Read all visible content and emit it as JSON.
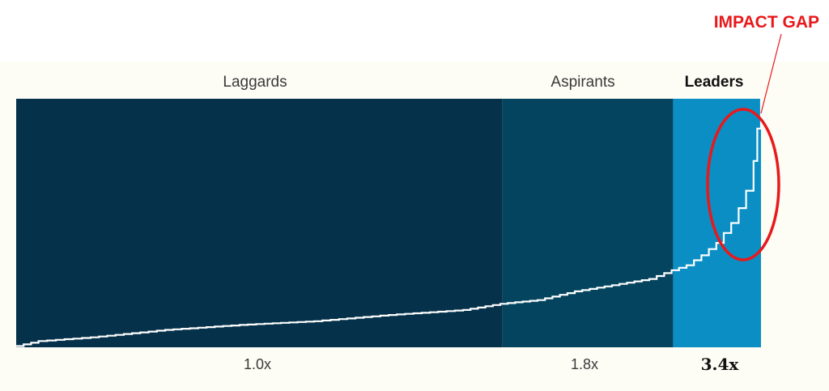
{
  "colors": {
    "background": "#fdfcf5",
    "laggards": "#05314a",
    "aspirants": "#05445f",
    "leaders": "#0a8ec4",
    "line": "#ffffff",
    "annotation": "#e8191b"
  },
  "annotation": {
    "text": "IMPACT GAP"
  },
  "chart_data": {
    "type": "line",
    "title": "",
    "xlabel": "",
    "ylabel": "",
    "segments": [
      {
        "name": "Laggards",
        "multiplier": "1.0x",
        "x_range": [
          0,
          65.3
        ]
      },
      {
        "name": "Aspirants",
        "multiplier": "1.8x",
        "x_range": [
          65.3,
          88.2
        ]
      },
      {
        "name": "Leaders",
        "multiplier": "3.4x",
        "x_range": [
          88.2,
          100
        ]
      }
    ],
    "series": [
      {
        "x": [
          0,
          3,
          10,
          20,
          30,
          40,
          50,
          60,
          65,
          70,
          75,
          80,
          85,
          88,
          90,
          92,
          94,
          96,
          97,
          98,
          99,
          99.5,
          100
        ],
        "y": [
          0.5,
          2.5,
          4,
          7,
          9,
          10.5,
          13,
          15,
          17.5,
          19,
          22.5,
          25,
          27.5,
          31,
          33,
          37,
          42,
          50,
          56,
          63,
          75,
          88,
          100
        ]
      }
    ],
    "xlim": [
      0,
      100
    ],
    "ylim": [
      0,
      100
    ],
    "grid": false,
    "legend": "none"
  }
}
